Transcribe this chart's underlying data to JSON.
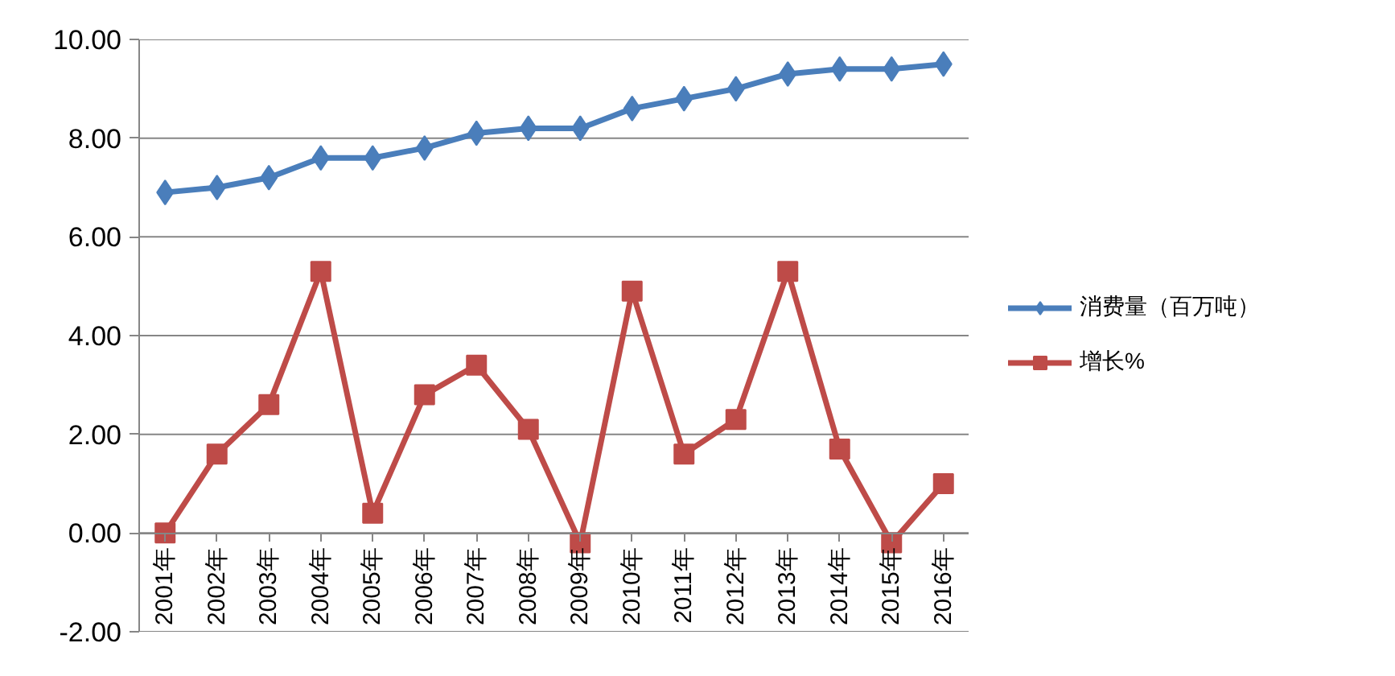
{
  "chart_data": {
    "type": "line",
    "categories": [
      "2001年",
      "2002年",
      "2003年",
      "2004年",
      "2005年",
      "2006年",
      "2007年",
      "2008年",
      "2009年",
      "2010年",
      "2011年",
      "2012年",
      "2013年",
      "2014年",
      "2015年",
      "2016年"
    ],
    "series": [
      {
        "name": "消费量（百万吨）",
        "color": "#4a7ebb",
        "marker": "diamond",
        "values": [
          6.9,
          7.0,
          7.2,
          7.6,
          7.6,
          7.8,
          8.1,
          8.2,
          8.2,
          8.6,
          8.8,
          9.0,
          9.3,
          9.4,
          9.4,
          9.5
        ]
      },
      {
        "name": "增长%",
        "color": "#be4b48",
        "marker": "square",
        "values": [
          0.0,
          1.6,
          2.6,
          5.3,
          0.4,
          2.8,
          3.4,
          2.1,
          -0.2,
          4.9,
          1.6,
          2.3,
          5.3,
          1.7,
          -0.2,
          1.0
        ]
      }
    ],
    "ylim": [
      -2,
      10
    ],
    "yticks": [
      {
        "value": -2,
        "label": "-2.00"
      },
      {
        "value": 0,
        "label": "0.00"
      },
      {
        "value": 2,
        "label": "2.00"
      },
      {
        "value": 4,
        "label": "4.00"
      },
      {
        "value": 6,
        "label": "6.00"
      },
      {
        "value": 8,
        "label": "8.00"
      },
      {
        "value": 10,
        "label": "10.00"
      }
    ],
    "grid": "y",
    "legend": "right"
  }
}
